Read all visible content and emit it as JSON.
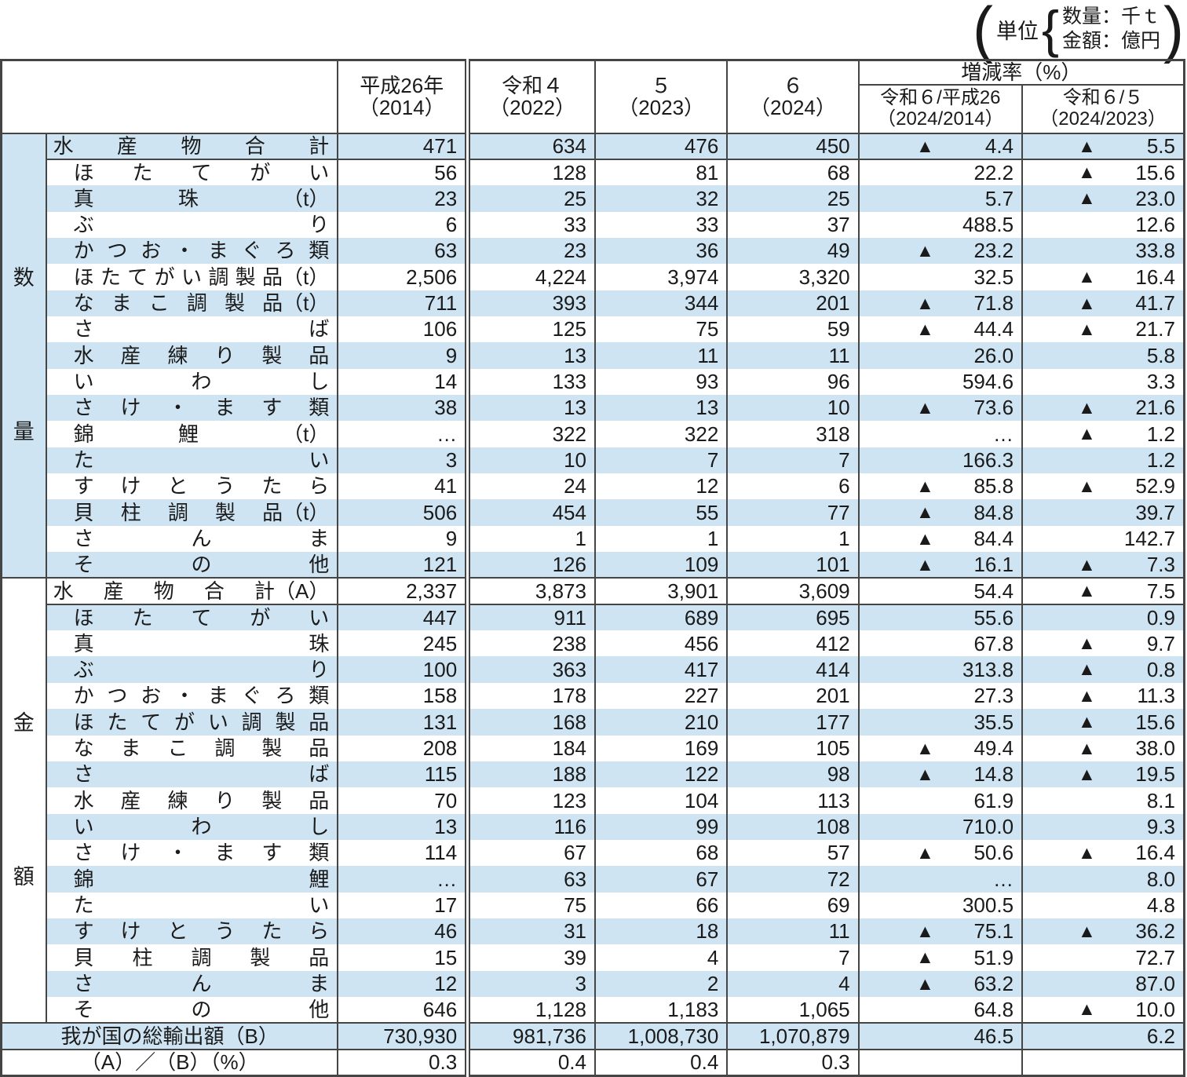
{
  "unit_note": {
    "open_bracket": "(",
    "label": "単位",
    "brace": "{",
    "line1": "数量：千ｔ",
    "line2": "金額：億円",
    "close_bracket": ")"
  },
  "table": {
    "year_columns": [
      {
        "line1": "平成26年",
        "line2": "（2014）"
      },
      {
        "line1": "令和４",
        "line2": "（2022）"
      },
      {
        "line1": "５",
        "line2": "（2023）"
      },
      {
        "line1": "６",
        "line2": "（2024）"
      }
    ],
    "rate_group_header": "増減率（%）",
    "rate_columns": [
      {
        "line1": "令和６/平成26",
        "line2": "（2024/2014）"
      },
      {
        "line1": "令和６/５",
        "line2": "（2024/2023）"
      }
    ],
    "sections": [
      {
        "name": "数量",
        "chars": [
          "数",
          "量"
        ],
        "rows": [
          {
            "label": "水産物合計",
            "seg": [
              "水",
              "産",
              "物",
              "合",
              "計"
            ],
            "total": true,
            "values": [
              "471",
              "634",
              "476",
              "450"
            ],
            "rates": [
              "▲ 4.4",
              "▲ 5.5"
            ]
          },
          {
            "label": "ほたてがい",
            "seg": [
              "ほ",
              "た",
              "て",
              "が",
              "い"
            ],
            "total": false,
            "values": [
              "56",
              "128",
              "81",
              "68"
            ],
            "rates": [
              "22.2",
              "▲ 15.6"
            ]
          },
          {
            "label": "真珠（t）",
            "seg": [
              "真",
              "珠",
              "（t）"
            ],
            "total": false,
            "values": [
              "23",
              "25",
              "32",
              "25"
            ],
            "rates": [
              "5.7",
              "▲ 23.0"
            ]
          },
          {
            "label": "ぶり",
            "seg": [
              "ぶ",
              "り"
            ],
            "total": false,
            "values": [
              "6",
              "33",
              "33",
              "37"
            ],
            "rates": [
              "488.5",
              "12.6"
            ]
          },
          {
            "label": "かつお・まぐろ類",
            "seg": [
              "か",
              "つ",
              "お",
              "・",
              "ま",
              "ぐ",
              "ろ",
              "類"
            ],
            "total": false,
            "values": [
              "63",
              "23",
              "36",
              "49"
            ],
            "rates": [
              "▲ 23.2",
              "33.8"
            ]
          },
          {
            "label": "ほたてがい調製品（t）",
            "seg": [
              "ほ",
              "た",
              "て",
              "が",
              "い",
              "調",
              "製",
              "品（t）"
            ],
            "total": false,
            "values": [
              "2,506",
              "4,224",
              "3,974",
              "3,320"
            ],
            "rates": [
              "32.5",
              "▲ 16.4"
            ]
          },
          {
            "label": "なまこ調製品（t）",
            "seg": [
              "な",
              "ま",
              "こ",
              "調",
              "製",
              "品（t）"
            ],
            "total": false,
            "values": [
              "711",
              "393",
              "344",
              "201"
            ],
            "rates": [
              "▲ 71.8",
              "▲ 41.7"
            ]
          },
          {
            "label": "さば",
            "seg": [
              "さ",
              "ば"
            ],
            "total": false,
            "values": [
              "106",
              "125",
              "75",
              "59"
            ],
            "rates": [
              "▲ 44.4",
              "▲ 21.7"
            ]
          },
          {
            "label": "水産練り製品",
            "seg": [
              "水",
              "産",
              "練",
              "り",
              "製",
              "品"
            ],
            "total": false,
            "values": [
              "9",
              "13",
              "11",
              "11"
            ],
            "rates": [
              "26.0",
              "5.8"
            ]
          },
          {
            "label": "いわし",
            "seg": [
              "い",
              "わ",
              "し"
            ],
            "total": false,
            "values": [
              "14",
              "133",
              "93",
              "96"
            ],
            "rates": [
              "594.6",
              "3.3"
            ]
          },
          {
            "label": "さけ・ます類",
            "seg": [
              "さ",
              "け",
              "・",
              "ま",
              "す",
              "類"
            ],
            "total": false,
            "values": [
              "38",
              "13",
              "13",
              "10"
            ],
            "rates": [
              "▲ 73.6",
              "▲ 21.6"
            ]
          },
          {
            "label": "錦鯉（t）",
            "seg": [
              "錦",
              "鯉",
              "（t）"
            ],
            "total": false,
            "values": [
              "…",
              "322",
              "322",
              "318"
            ],
            "rates": [
              "…",
              "▲ 1.2"
            ]
          },
          {
            "label": "たい",
            "seg": [
              "た",
              "い"
            ],
            "total": false,
            "values": [
              "3",
              "10",
              "7",
              "7"
            ],
            "rates": [
              "166.3",
              "1.2"
            ]
          },
          {
            "label": "すけとうたら",
            "seg": [
              "す",
              "け",
              "と",
              "う",
              "た",
              "ら"
            ],
            "total": false,
            "values": [
              "41",
              "24",
              "12",
              "6"
            ],
            "rates": [
              "▲ 85.8",
              "▲ 52.9"
            ]
          },
          {
            "label": "貝柱調製品（t）",
            "seg": [
              "貝",
              "柱",
              "調",
              "製",
              "品（t）"
            ],
            "total": false,
            "values": [
              "506",
              "454",
              "55",
              "77"
            ],
            "rates": [
              "▲ 84.8",
              "39.7"
            ]
          },
          {
            "label": "さんま",
            "seg": [
              "さ",
              "ん",
              "ま"
            ],
            "total": false,
            "values": [
              "9",
              "1",
              "1",
              "1"
            ],
            "rates": [
              "▲ 84.4",
              "142.7"
            ]
          },
          {
            "label": "その他",
            "seg": [
              "そ",
              "の",
              "他"
            ],
            "total": false,
            "values": [
              "121",
              "126",
              "109",
              "101"
            ],
            "rates": [
              "▲ 16.1",
              "▲ 7.3"
            ]
          }
        ]
      },
      {
        "name": "金額",
        "chars": [
          "金",
          "額"
        ],
        "rows": [
          {
            "label": "水産物合計（A）",
            "seg": [
              "水",
              "産",
              "物",
              "合",
              "計（A）"
            ],
            "total": true,
            "values": [
              "2,337",
              "3,873",
              "3,901",
              "3,609"
            ],
            "rates": [
              "54.4",
              "▲ 7.5"
            ]
          },
          {
            "label": "ほたてがい",
            "seg": [
              "ほ",
              "た",
              "て",
              "が",
              "い"
            ],
            "total": false,
            "values": [
              "447",
              "911",
              "689",
              "695"
            ],
            "rates": [
              "55.6",
              "0.9"
            ]
          },
          {
            "label": "真珠",
            "seg": [
              "真",
              "珠"
            ],
            "total": false,
            "values": [
              "245",
              "238",
              "456",
              "412"
            ],
            "rates": [
              "67.8",
              "▲ 9.7"
            ]
          },
          {
            "label": "ぶり",
            "seg": [
              "ぶ",
              "り"
            ],
            "total": false,
            "values": [
              "100",
              "363",
              "417",
              "414"
            ],
            "rates": [
              "313.8",
              "▲ 0.8"
            ]
          },
          {
            "label": "かつお・まぐろ類",
            "seg": [
              "か",
              "つ",
              "お",
              "・",
              "ま",
              "ぐ",
              "ろ",
              "類"
            ],
            "total": false,
            "values": [
              "158",
              "178",
              "227",
              "201"
            ],
            "rates": [
              "27.3",
              "▲ 11.3"
            ]
          },
          {
            "label": "ほたてがい調製品",
            "seg": [
              "ほ",
              "た",
              "て",
              "が",
              "い",
              "調",
              "製",
              "品"
            ],
            "total": false,
            "values": [
              "131",
              "168",
              "210",
              "177"
            ],
            "rates": [
              "35.5",
              "▲ 15.6"
            ]
          },
          {
            "label": "なまこ調製品",
            "seg": [
              "な",
              "ま",
              "こ",
              "調",
              "製",
              "品"
            ],
            "total": false,
            "values": [
              "208",
              "184",
              "169",
              "105"
            ],
            "rates": [
              "▲ 49.4",
              "▲ 38.0"
            ]
          },
          {
            "label": "さば",
            "seg": [
              "さ",
              "ば"
            ],
            "total": false,
            "values": [
              "115",
              "188",
              "122",
              "98"
            ],
            "rates": [
              "▲ 14.8",
              "▲ 19.5"
            ]
          },
          {
            "label": "水産練り製品",
            "seg": [
              "水",
              "産",
              "練",
              "り",
              "製",
              "品"
            ],
            "total": false,
            "values": [
              "70",
              "123",
              "104",
              "113"
            ],
            "rates": [
              "61.9",
              "8.1"
            ]
          },
          {
            "label": "いわし",
            "seg": [
              "い",
              "わ",
              "し"
            ],
            "total": false,
            "values": [
              "13",
              "116",
              "99",
              "108"
            ],
            "rates": [
              "710.0",
              "9.3"
            ]
          },
          {
            "label": "さけ・ます類",
            "seg": [
              "さ",
              "け",
              "・",
              "ま",
              "す",
              "類"
            ],
            "total": false,
            "values": [
              "114",
              "67",
              "68",
              "57"
            ],
            "rates": [
              "▲ 50.6",
              "▲ 16.4"
            ]
          },
          {
            "label": "錦鯉",
            "seg": [
              "錦",
              "鯉"
            ],
            "total": false,
            "values": [
              "…",
              "63",
              "67",
              "72"
            ],
            "rates": [
              "…",
              "8.0"
            ]
          },
          {
            "label": "たい",
            "seg": [
              "た",
              "い"
            ],
            "total": false,
            "values": [
              "17",
              "75",
              "66",
              "69"
            ],
            "rates": [
              "300.5",
              "4.8"
            ]
          },
          {
            "label": "すけとうたら",
            "seg": [
              "す",
              "け",
              "と",
              "う",
              "た",
              "ら"
            ],
            "total": false,
            "values": [
              "46",
              "31",
              "18",
              "11"
            ],
            "rates": [
              "▲ 75.1",
              "▲ 36.2"
            ]
          },
          {
            "label": "貝柱調製品",
            "seg": [
              "貝",
              "柱",
              "調",
              "製",
              "品"
            ],
            "total": false,
            "values": [
              "15",
              "39",
              "4",
              "7"
            ],
            "rates": [
              "▲ 51.9",
              "72.7"
            ]
          },
          {
            "label": "さんま",
            "seg": [
              "さ",
              "ん",
              "ま"
            ],
            "total": false,
            "values": [
              "12",
              "3",
              "2",
              "4"
            ],
            "rates": [
              "▲ 63.2",
              "87.0"
            ]
          },
          {
            "label": "その他",
            "seg": [
              "そ",
              "の",
              "他"
            ],
            "total": false,
            "values": [
              "646",
              "1,128",
              "1,183",
              "1,065"
            ],
            "rates": [
              "64.8",
              "▲ 10.0"
            ]
          }
        ]
      }
    ],
    "footer_rows": [
      {
        "label": "我が国の総輸出額（B）",
        "values": [
          "730,930",
          "981,736",
          "1,008,730",
          "1,070,879"
        ],
        "rates": [
          "46.5",
          "6.2"
        ]
      },
      {
        "label": "（A）／（B）（%）",
        "values": [
          "0.3",
          "0.4",
          "0.4",
          "0.3"
        ],
        "rates": [
          "",
          ""
        ]
      }
    ]
  },
  "colors": {
    "band": "#cfe4f2",
    "border": "#454545",
    "text": "#1a1a1a"
  }
}
